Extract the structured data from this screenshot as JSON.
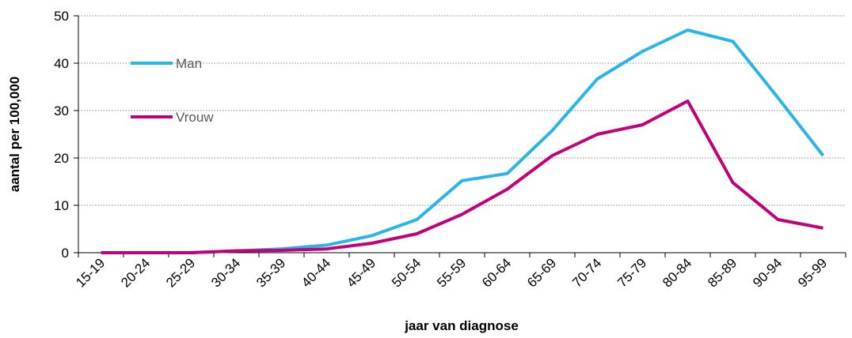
{
  "chart_data": {
    "type": "line",
    "y_label": "aantal per 100,000",
    "x_label": "jaar van diagnose",
    "categories": [
      "15-19",
      "20-24",
      "25-29",
      "30-34",
      "35-39",
      "40-44",
      "45-49",
      "50-54",
      "55-59",
      "60-64",
      "65-69",
      "70-74",
      "75-79",
      "80-84",
      "85-89",
      "90-94",
      "95-99"
    ],
    "series": [
      {
        "name": "Man",
        "color": "#29b5e8",
        "values": [
          0,
          0,
          0,
          0.4,
          0.8,
          1.6,
          3.6,
          7,
          15.2,
          16.7,
          25.8,
          36.7,
          42.5,
          47,
          44.6,
          32.7,
          20.5
        ]
      },
      {
        "name": "Vrouw",
        "color": "#c1007a",
        "values": [
          0,
          0,
          0,
          0.4,
          0.5,
          0.8,
          2,
          4,
          8.1,
          13.4,
          20.5,
          25,
          27,
          32,
          14.8,
          7,
          5.2
        ]
      }
    ],
    "ylim": [
      0,
      50
    ],
    "yticks": [
      0,
      10,
      20,
      30,
      40,
      50
    ],
    "grid": true,
    "legend": "upper left"
  }
}
